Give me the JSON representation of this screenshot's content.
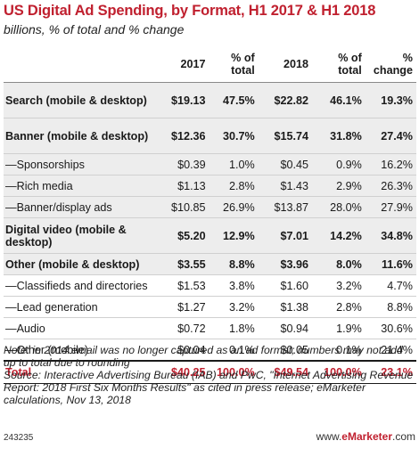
{
  "chart_data": {
    "type": "table",
    "title": "US Digital Ad Spending, by Format, H1 2017 & H1 2018",
    "subtitle": "billions, % of total and % change",
    "columns": [
      "",
      "2017",
      "% of total",
      "2018",
      "% of total",
      "% change"
    ],
    "rows": [
      {
        "label": "Search (mobile & desktop)",
        "v2017": "$19.13",
        "pct2017": "47.5%",
        "v2018": "$22.82",
        "pct2018": "46.1%",
        "change": "19.3%"
      },
      {
        "label": "Banner (mobile & desktop)",
        "v2017": "$12.36",
        "pct2017": "30.7%",
        "v2018": "$15.74",
        "pct2018": "31.8%",
        "change": "27.4%"
      },
      {
        "label": "—Sponsorships",
        "v2017": "$0.39",
        "pct2017": "1.0%",
        "v2018": "$0.45",
        "pct2018": "0.9%",
        "change": "16.2%"
      },
      {
        "label": "—Rich media",
        "v2017": "$1.13",
        "pct2017": "2.8%",
        "v2018": "$1.43",
        "pct2018": "2.9%",
        "change": "26.3%"
      },
      {
        "label": "—Banner/display ads",
        "v2017": "$10.85",
        "pct2017": "26.9%",
        "v2018": "$13.87",
        "pct2018": "28.0%",
        "change": "27.9%"
      },
      {
        "label": "Digital video (mobile & desktop)",
        "v2017": "$5.20",
        "pct2017": "12.9%",
        "v2018": "$7.01",
        "pct2018": "14.2%",
        "change": "34.8%"
      },
      {
        "label": "Other (mobile & desktop)",
        "v2017": "$3.55",
        "pct2017": "8.8%",
        "v2018": "$3.96",
        "pct2018": "8.0%",
        "change": "11.6%"
      },
      {
        "label": "—Classifieds and directories",
        "v2017": "$1.53",
        "pct2017": "3.8%",
        "v2018": "$1.60",
        "pct2018": "3.2%",
        "change": "4.7%"
      },
      {
        "label": "—Lead generation",
        "v2017": "$1.27",
        "pct2017": "3.2%",
        "v2018": "$1.38",
        "pct2018": "2.8%",
        "change": "8.8%"
      },
      {
        "label": "—Audio",
        "v2017": "$0.72",
        "pct2017": "1.8%",
        "v2018": "$0.94",
        "pct2018": "1.9%",
        "change": "30.6%"
      },
      {
        "label": "—Other (mobile)",
        "v2017": "$0.04",
        "pct2017": "0.1%",
        "v2018": "$0.05",
        "pct2018": "0.1%",
        "change": "21.4%"
      }
    ],
    "total": {
      "label": "Total",
      "v2017": "$40.25",
      "pct2017": "100.0%",
      "v2018": "$49.54",
      "pct2018": "100.0%",
      "change": "23.1%"
    }
  },
  "notes": {
    "note": "Note: in 2014 email was no longer captured as an ad format; numbers may not add up to total due to rounding",
    "source": "Source: Interactive Advertising Bureau (IAB) and PwC, \"Internet Advertising Revenue Report: 2018 First Six Months Results\" as cited in press release; eMarketer calculations, Nov 13, 2018"
  },
  "footer": {
    "id": "243235",
    "url_prefix": "www.",
    "url_brand": "eMarketer",
    "url_suffix": ".com"
  },
  "colors": {
    "accent": "#c0202f",
    "shade": "#ededed"
  }
}
